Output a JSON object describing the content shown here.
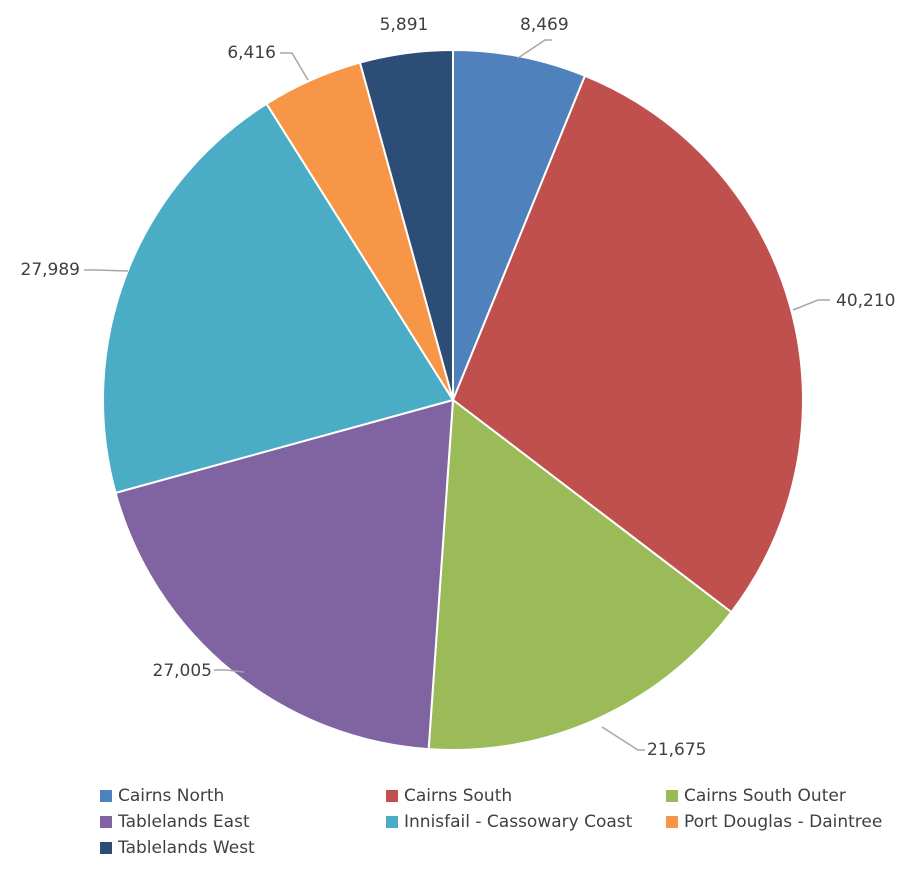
{
  "chart_data": {
    "type": "pie",
    "title": "",
    "legend_position": "bottom",
    "start_angle_deg": 0,
    "direction": "clockwise",
    "slices": [
      {
        "name": "Cairns North",
        "value": 8469,
        "label": "8,469",
        "color": "#4f81bd"
      },
      {
        "name": "Cairns South",
        "value": 40210,
        "label": "40,210",
        "color": "#c0504d"
      },
      {
        "name": "Cairns South Outer",
        "value": 21675,
        "label": "21,675",
        "color": "#9bbb59"
      },
      {
        "name": "Tablelands East",
        "value": 27005,
        "label": "27,005",
        "color": "#8064a2"
      },
      {
        "name": "Innisfail - Cassowary Coast",
        "value": 27989,
        "label": "27,989",
        "color": "#4bacc6"
      },
      {
        "name": "Port Douglas - Daintree",
        "value": 6416,
        "label": "6,416",
        "color": "#f79646"
      },
      {
        "name": "Tablelands West",
        "value": 5891,
        "label": "5,891",
        "color": "#2c4d75"
      }
    ]
  }
}
